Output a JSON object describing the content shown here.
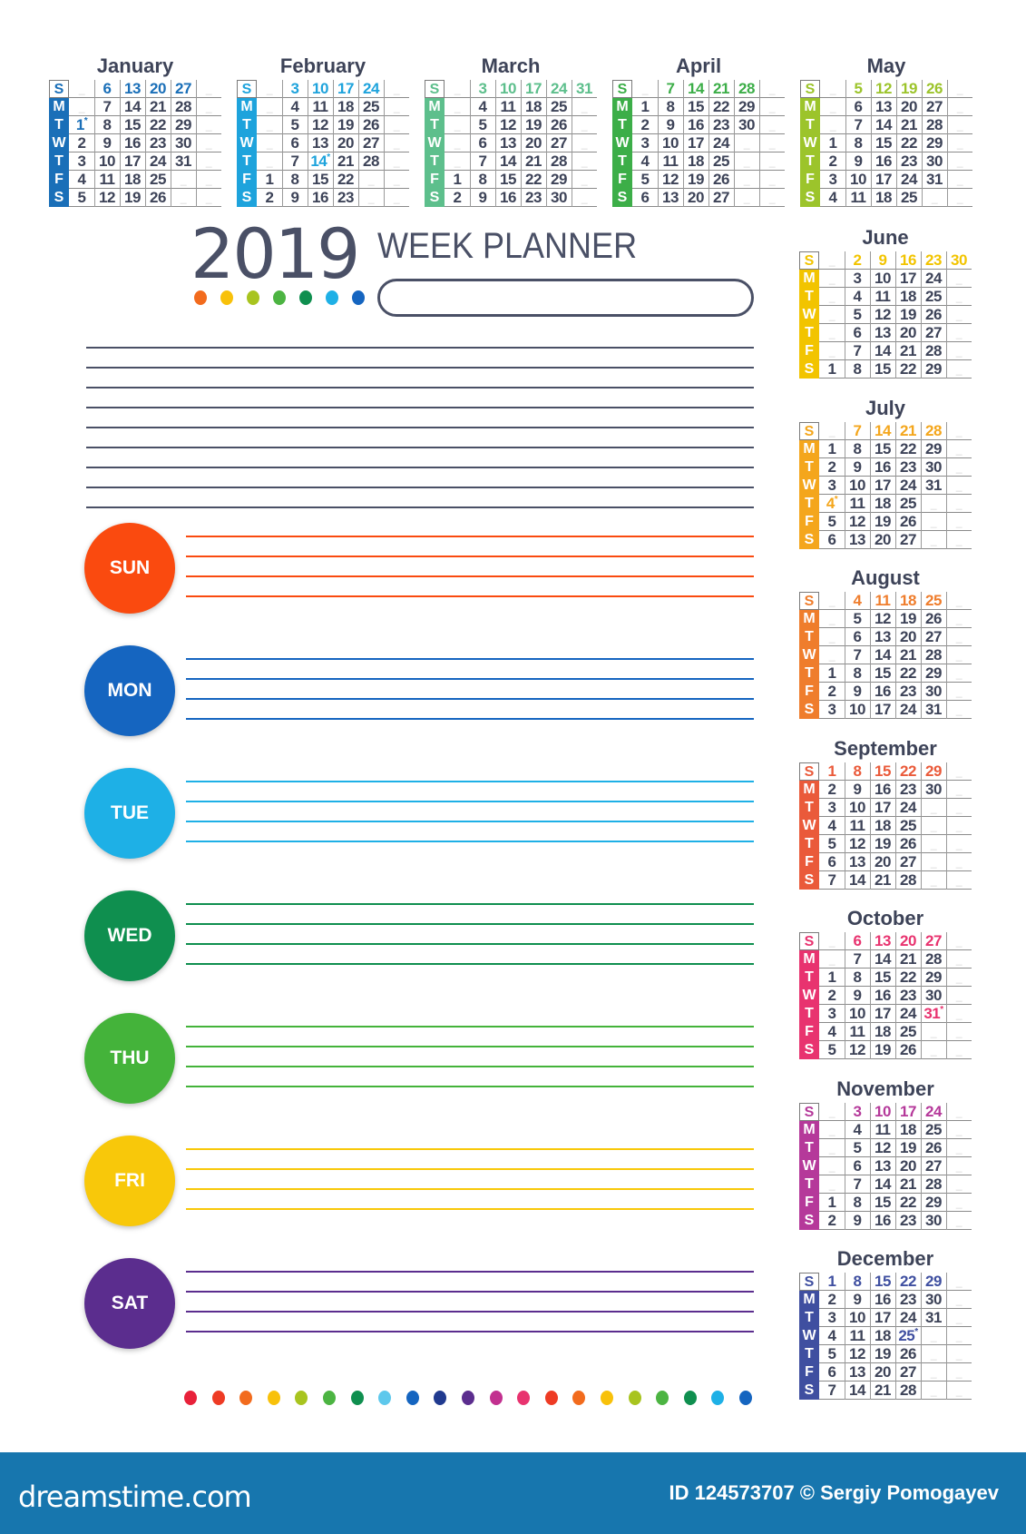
{
  "header": {
    "year": "2019",
    "title": "WEEK PLANNER"
  },
  "day_letters": [
    "S",
    "M",
    "T",
    "W",
    "T",
    "F",
    "S"
  ],
  "months": [
    {
      "name": "January",
      "color": "#1a6fb8",
      "rows": [
        "_ 6 13 20 27 _",
        "_ 7 14 21 28 _",
        "1* 8 15 22 29 _",
        "2 9 16 23 30 _",
        "3 10 17 24 31 _",
        "4 11 18 25 _ _",
        "5 12 19 26 _ _"
      ]
    },
    {
      "name": "February",
      "color": "#1ea3dc",
      "rows": [
        "_ 3 10 17 24 _",
        "_ 4 11 18 25 _",
        "_ 5 12 19 26 _",
        "_ 6 13 20 27 _",
        "_ 7 14* 21 28 _",
        "1 8 15 22 _ _",
        "2 9 16 23 _ _"
      ]
    },
    {
      "name": "March",
      "color": "#5dbf8c",
      "rows": [
        "_ 3 10 17 24 31",
        "_ 4 11 18 25 _",
        "_ 5 12 19 26 _",
        "_ 6 13 20 27 _",
        "_ 7 14 21 28 _",
        "1 8 15 22 29 _",
        "2 9 16 23 30 _"
      ]
    },
    {
      "name": "April",
      "color": "#3cae48",
      "rows": [
        "_ 7 14 21 28 _",
        "1 8 15 22 29 _",
        "2 9 16 23 30 _",
        "3 10 17 24 _ _",
        "4 11 18 25 _ _",
        "5 12 19 26 _ _",
        "6 13 20 27 _ _"
      ]
    },
    {
      "name": "May",
      "color": "#9cc42b",
      "rows": [
        "_ 5 12 19 26 _",
        "_ 6 13 20 27 _",
        "_ 7 14 21 28 _",
        "1 8 15 22 29 _",
        "2 9 16 23 30 _",
        "3 10 17 24 31 _",
        "4 11 18 25 _ _"
      ]
    },
    {
      "name": "June",
      "color": "#f2c400",
      "rows": [
        "_ 2 9 16 23 30",
        "_ 3 10 17 24 _",
        "_ 4 11 18 25 _",
        "_ 5 12 19 26 _",
        "_ 6 13 20 27 _",
        "_ 7 14 21 28 _",
        "1 8 15 22 29 _"
      ]
    },
    {
      "name": "July",
      "color": "#f4a61c",
      "rows": [
        "_ 7 14 21 28 _",
        "1 8 15 22 29 _",
        "2 9 16 23 30 _",
        "3 10 17 24 31 _",
        "4* 11 18 25 _ _",
        "5 12 19 26 _ _",
        "6 13 20 27 _ _"
      ]
    },
    {
      "name": "August",
      "color": "#ef7d2c",
      "rows": [
        "_ 4 11 18 25 _",
        "_ 5 12 19 26 _",
        "_ 6 13 20 27 _",
        "_ 7 14 21 28 _",
        "1 8 15 22 29 _",
        "2 9 16 23 30 _",
        "3 10 17 24 31 _"
      ]
    },
    {
      "name": "September",
      "color": "#ea5a3a",
      "rows": [
        "1 8 15 22 29 _",
        "2 9 16 23 30 _",
        "3 10 17 24 _ _",
        "4 11 18 25 _ _",
        "5 12 19 26 _ _",
        "6 13 20 27 _ _",
        "7 14 21 28 _ _"
      ]
    },
    {
      "name": "October",
      "color": "#e8336f",
      "rows": [
        "_ 6 13 20 27 _",
        "_ 7 14 21 28 _",
        "1 8 15 22 29 _",
        "2 9 16 23 30 _",
        "3 10 17 24 31* _",
        "4 11 18 25 _ _",
        "5 12 19 26 _ _"
      ]
    },
    {
      "name": "November",
      "color": "#b5399a",
      "rows": [
        "_ 3 10 17 24 _",
        "_ 4 11 18 25 _",
        "_ 5 12 19 26 _",
        "_ 6 13 20 27 _",
        "_ 7 14 21 28 _",
        "1 8 15 22 29 _",
        "2 9 16 23 30 _"
      ]
    },
    {
      "name": "December",
      "color": "#3f4fa0",
      "rows": [
        "1 8 15 22 29 _",
        "2 9 16 23 30 _",
        "3 10 17 24 31 _",
        "4 11 18 25* _ _",
        "5 12 19 26 _ _",
        "6 13 20 27 _ _",
        "7 14 21 28 _ _"
      ]
    }
  ],
  "days": [
    {
      "label": "SUN",
      "color": "#fa4a0f"
    },
    {
      "label": "MON",
      "color": "#1565c0"
    },
    {
      "label": "TUE",
      "color": "#1eb0e6"
    },
    {
      "label": "WED",
      "color": "#0f8f4f"
    },
    {
      "label": "THU",
      "color": "#44b33a"
    },
    {
      "label": "FRI",
      "color": "#f8c80a"
    },
    {
      "label": "SAT",
      "color": "#5b2d8e"
    }
  ],
  "notes_line_color": "#4a5066",
  "header_dots": [
    "#f26b1d",
    "#f8c10a",
    "#a8c41f",
    "#4cb442",
    "#0f8f4f",
    "#1eb0e6",
    "#1565c0"
  ],
  "bottom_dots": [
    "#e8213a",
    "#ee3b24",
    "#f26b1d",
    "#f8c10a",
    "#a8c41f",
    "#4cb442",
    "#0f8f4f",
    "#5ec8ec",
    "#1565c0",
    "#203a8f",
    "#5b2d8e",
    "#c2308f",
    "#e8336f",
    "#ee3b24",
    "#f26b1d",
    "#f8c10a",
    "#a8c41f",
    "#4cb442",
    "#0f8f4f",
    "#1eb0e6",
    "#1565c0"
  ],
  "footer": {
    "logo": "dreamstime.com",
    "credit": "ID 124573707 © Sergiy Pomogayev"
  }
}
